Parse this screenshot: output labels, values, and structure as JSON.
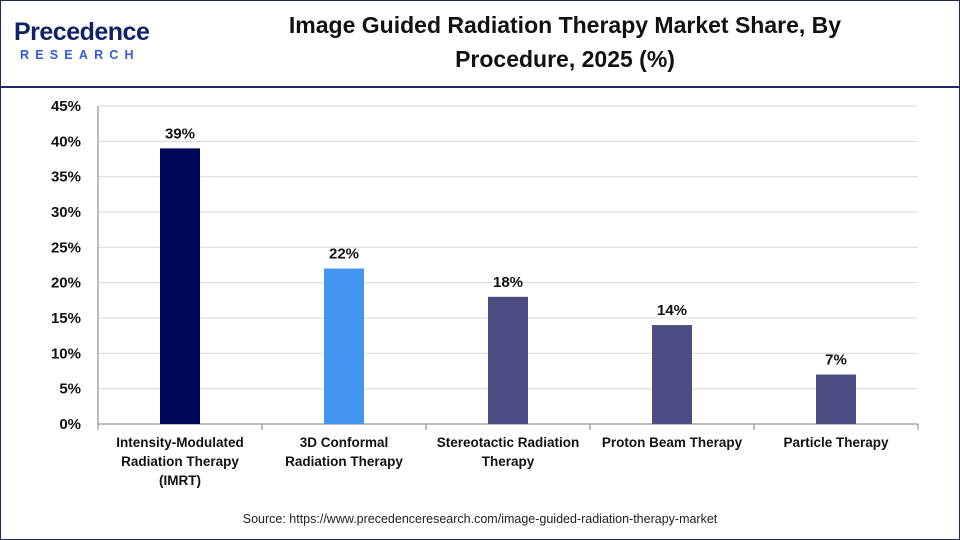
{
  "header": {
    "logo_word": "Precedence",
    "logo_sub": "RESEARCH",
    "title_line1": "Image Guided Radiation Therapy Market Share, By",
    "title_line2": "Procedure, 2025 (%)"
  },
  "source": "Source: https://www.precedenceresearch.com/image-guided-radiation-therapy-market",
  "colors": {
    "imrt": "#020659",
    "conformal": "#4494f2",
    "other": "#4b4c82",
    "grid": "#d9d9d9",
    "axis": "#7f7f7f"
  },
  "chart_data": {
    "type": "bar",
    "title": "Image Guided Radiation Therapy Market Share, By Procedure, 2025 (%)",
    "categories": [
      [
        "Intensity-Modulated",
        "Radiation Therapy",
        "(IMRT)"
      ],
      [
        "3D Conformal",
        "Radiation Therapy"
      ],
      [
        "Stereotactic Radiation",
        "Therapy"
      ],
      [
        "Proton Beam Therapy"
      ],
      [
        "Particle Therapy"
      ]
    ],
    "values": [
      39,
      22,
      18,
      14,
      7
    ],
    "data_labels": [
      "39%",
      "22%",
      "18%",
      "14%",
      "7%"
    ],
    "bar_colors": [
      "#020659",
      "#4494f2",
      "#4b4c82",
      "#4b4c82",
      "#4b4c82"
    ],
    "ylim": [
      0,
      45
    ],
    "yticks": [
      0,
      5,
      10,
      15,
      20,
      25,
      30,
      35,
      40,
      45
    ],
    "ytick_labels": [
      "0%",
      "5%",
      "10%",
      "15%",
      "20%",
      "25%",
      "30%",
      "35%",
      "40%",
      "45%"
    ],
    "grid": true,
    "xlabel": "",
    "ylabel": ""
  }
}
